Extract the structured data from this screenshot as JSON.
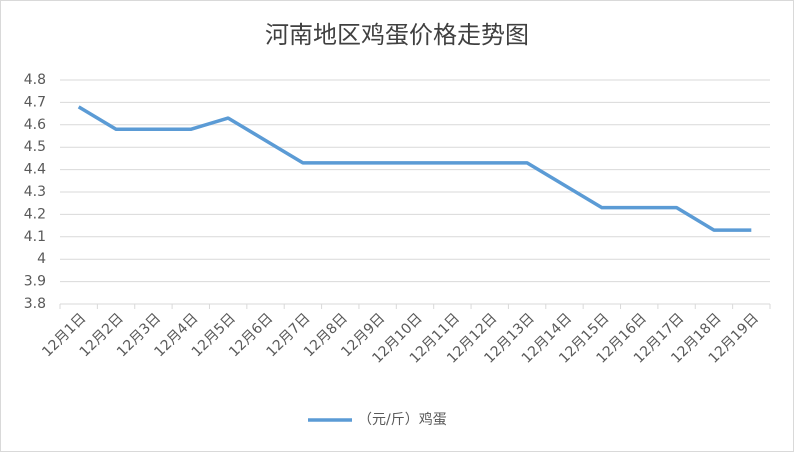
{
  "chart_data": {
    "type": "line",
    "title": "河南地区鸡蛋价格走势图",
    "categories": [
      "12月1日",
      "12月2日",
      "12月3日",
      "12月4日",
      "12月5日",
      "12月6日",
      "12月7日",
      "12月8日",
      "12月9日",
      "12月10日",
      "12月11日",
      "12月12日",
      "12月13日",
      "12月14日",
      "12月15日",
      "12月16日",
      "12月17日",
      "12月18日",
      "12月19日"
    ],
    "series": [
      {
        "name": "（元/斤）鸡蛋",
        "color": "#5b9bd5",
        "values": [
          4.68,
          4.58,
          4.58,
          4.58,
          4.63,
          4.53,
          4.43,
          4.43,
          4.43,
          4.43,
          4.43,
          4.43,
          4.43,
          4.33,
          4.23,
          4.23,
          4.23,
          4.13,
          4.13
        ]
      }
    ],
    "ylim": [
      3.8,
      4.8
    ],
    "yticks": [
      3.8,
      3.9,
      4,
      4.1,
      4.2,
      4.3,
      4.4,
      4.5,
      4.6,
      4.7,
      4.8
    ],
    "grid": true,
    "legend": "bottom"
  }
}
